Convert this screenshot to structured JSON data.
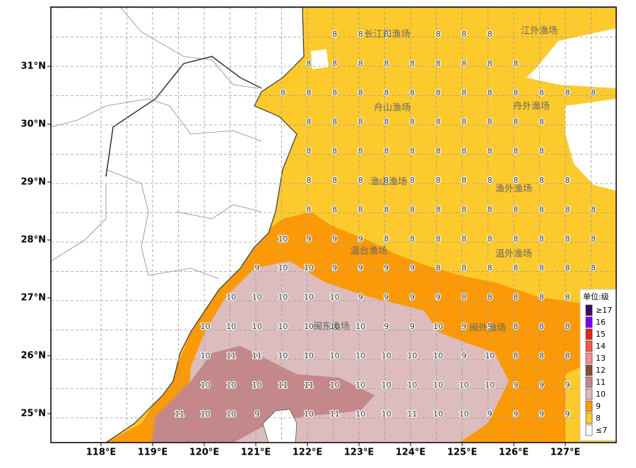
{
  "map": {
    "x_axis_labels": [
      "118°E",
      "119°E",
      "120°E",
      "121°E",
      "122°E",
      "123°E",
      "124°E",
      "125°E",
      "126°E",
      "127°E"
    ],
    "y_axis_labels": [
      "31°N",
      "30°N",
      "29°N",
      "28°N",
      "27°N",
      "26°N",
      "25°N"
    ],
    "fishing_grounds": [
      "长江口渔场",
      "江外渔场",
      "舟山渔场",
      "舟外渔场",
      "渔山渔场",
      "渔外渔场",
      "温台渔场",
      "温外渔场",
      "闽东渔场",
      "闽外渔场"
    ],
    "grid_values": [
      [
        null,
        null,
        null,
        null,
        null,
        null,
        8,
        8,
        8,
        null,
        8,
        8,
        8,
        null,
        null,
        null,
        null
      ],
      [
        null,
        null,
        null,
        null,
        null,
        8,
        8,
        8,
        8,
        8,
        8,
        8,
        8,
        8,
        null,
        null,
        null
      ],
      [
        null,
        null,
        null,
        null,
        8,
        8,
        8,
        8,
        8,
        8,
        8,
        8,
        8,
        8,
        8,
        8,
        8
      ],
      [
        null,
        null,
        null,
        null,
        null,
        8,
        8,
        8,
        8,
        8,
        8,
        8,
        8,
        8,
        8,
        null,
        null
      ],
      [
        null,
        null,
        null,
        null,
        null,
        8,
        8,
        8,
        8,
        8,
        8,
        8,
        8,
        8,
        8,
        null,
        null
      ],
      [
        null,
        null,
        null,
        null,
        null,
        8,
        8,
        8,
        8,
        8,
        8,
        8,
        8,
        8,
        8,
        8,
        null
      ],
      [
        null,
        null,
        null,
        null,
        null,
        8,
        8,
        8,
        8,
        8,
        8,
        8,
        8,
        8,
        8,
        8,
        8
      ],
      [
        null,
        null,
        null,
        null,
        10,
        9,
        9,
        9,
        8,
        8,
        8,
        8,
        8,
        8,
        8,
        8,
        8
      ],
      [
        null,
        null,
        null,
        9,
        10,
        10,
        9,
        9,
        9,
        9,
        8,
        8,
        8,
        8,
        8,
        8,
        8
      ],
      [
        null,
        null,
        10,
        10,
        10,
        10,
        10,
        9,
        9,
        9,
        9,
        8,
        8,
        8,
        8,
        8,
        null
      ],
      [
        null,
        10,
        10,
        10,
        10,
        10,
        10,
        10,
        9,
        9,
        10,
        9,
        9,
        8,
        8,
        8,
        null
      ],
      [
        null,
        10,
        11,
        11,
        10,
        10,
        10,
        10,
        10,
        10,
        10,
        9,
        10,
        8,
        8,
        8,
        null
      ],
      [
        null,
        10,
        10,
        10,
        11,
        11,
        10,
        10,
        10,
        10,
        10,
        10,
        10,
        9,
        9,
        9,
        null
      ],
      [
        11,
        10,
        10,
        9,
        null,
        10,
        11,
        10,
        10,
        11,
        10,
        10,
        9,
        9,
        9,
        9,
        null
      ]
    ],
    "legend": {
      "title": "单位:级",
      "items": [
        {
          "label": "≥17",
          "color": "#3d0a6b"
        },
        {
          "label": "16",
          "color": "#7f00ff"
        },
        {
          "label": "15",
          "color": "#e8221b"
        },
        {
          "label": "14",
          "color": "#f05a4a"
        },
        {
          "label": "13",
          "color": "#f3908a"
        },
        {
          "label": "12",
          "color": "#8a4b3d"
        },
        {
          "label": "11",
          "color": "#c4878a"
        },
        {
          "label": "10",
          "color": "#dcbcbd"
        },
        {
          "label": "9",
          "color": "#fb9a06"
        },
        {
          "label": "8",
          "color": "#fdca2e"
        },
        {
          "label": "≤7",
          "color": "#ffffff"
        }
      ]
    }
  }
}
